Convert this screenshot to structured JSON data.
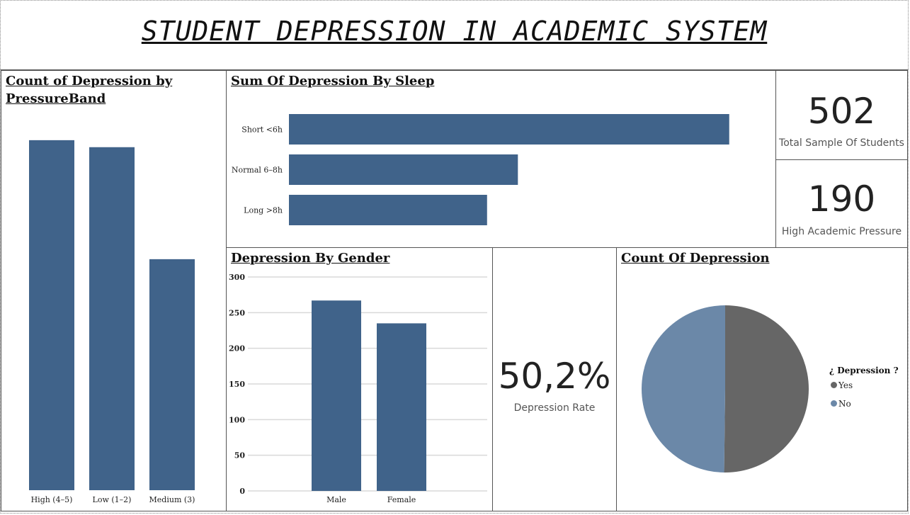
{
  "page_title": "STUDENT DEPRESSION IN ACADEMIC SYSTEM",
  "colors": {
    "bar": "#40638a",
    "pie_yes": "#666666",
    "pie_no": "#6b88a8",
    "grid": "#d9d9d9"
  },
  "kpis": {
    "total": {
      "value": "502",
      "label": "Total Sample Of Students"
    },
    "high_pressure": {
      "value": "190",
      "label": "High Academic Pressure"
    },
    "rate": {
      "value": "50,2%",
      "label": "Depression Rate"
    }
  },
  "chart_data": [
    {
      "type": "bar",
      "title": "Count of Depression by PressureBand",
      "categories": [
        "High (4–5)",
        "Low (1–2)",
        "Medium (3)"
      ],
      "values": [
        100,
        98,
        66
      ],
      "ylim": [
        0,
        102
      ]
    },
    {
      "type": "bar",
      "orientation": "horizontal",
      "title": "Sum Of Depression By Sleep",
      "categories": [
        "Short <6h",
        "Normal 6–8h",
        "Long >8h"
      ],
      "values": [
        100,
        52,
        45
      ],
      "xlim": [
        0,
        115
      ]
    },
    {
      "type": "bar",
      "title": "Depression By Gender",
      "categories": [
        "Male",
        "Female"
      ],
      "values": [
        267,
        235
      ],
      "ylim": [
        0,
        300
      ],
      "yticks": [
        0,
        50,
        100,
        150,
        200,
        250,
        300
      ],
      "grid": true
    },
    {
      "type": "pie",
      "title": "Count Of Depression",
      "legend_title": "¿ Depression ?",
      "legend_position": "right",
      "labels": [
        "Yes",
        "No"
      ],
      "values": [
        252,
        250
      ]
    }
  ]
}
